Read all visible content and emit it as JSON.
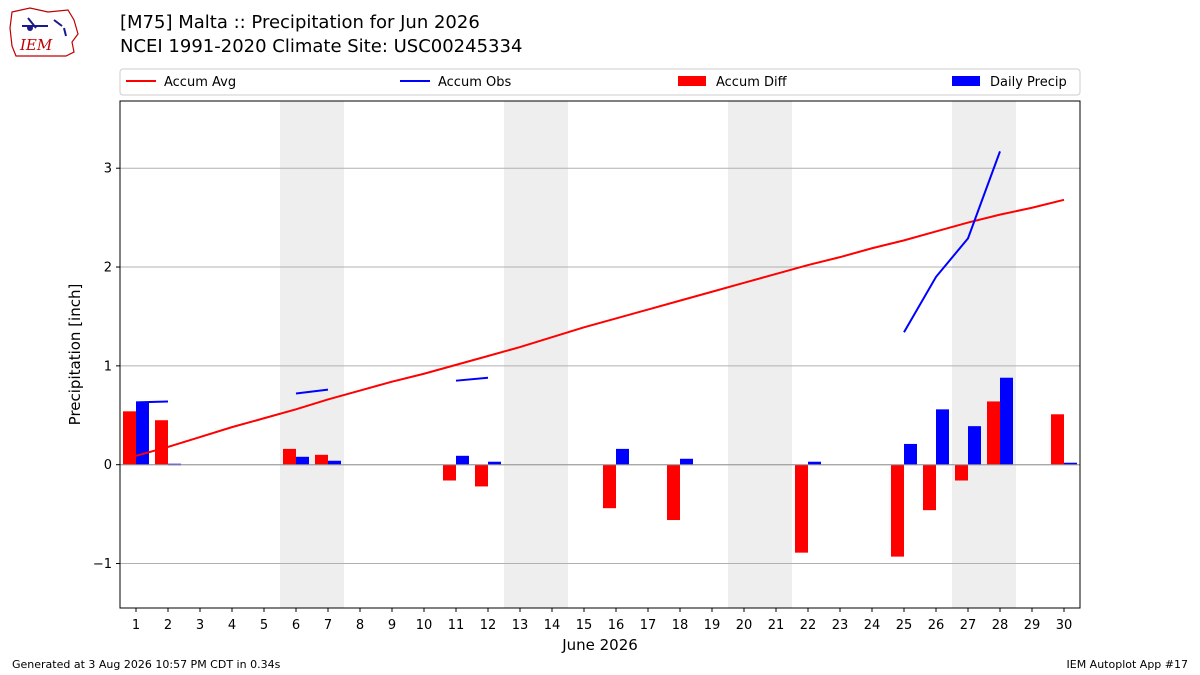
{
  "header": {
    "title_line1": "[M75] Malta :: Precipitation for Jun 2026",
    "title_line2": "NCEI 1991-2020 Climate Site: USC00245334"
  },
  "logo": {
    "text": "IEM",
    "icon": "iem-logo-icon"
  },
  "footer": {
    "generated": "Generated at 3 Aug 2026 10:57 PM CDT in 0.34s",
    "app": "IEM Autoplot App #17"
  },
  "colors": {
    "avg": "#ff0000",
    "obs": "#0000ff",
    "diff": "#ff0000",
    "daily": "#0000ff",
    "weekend": "#eeeeee",
    "grid": "#b0b0b0"
  },
  "chart_data": {
    "type": "bar",
    "xlabel": "June 2026",
    "ylabel": "Precipitation [inch]",
    "xlim": [
      0.5,
      30.5
    ],
    "ylim": [
      -1.45,
      3.68
    ],
    "yticks": [
      -1,
      0,
      1,
      2,
      3
    ],
    "yticklabels": [
      "−1",
      "0",
      "1",
      "2",
      "3"
    ],
    "categories": [
      1,
      2,
      3,
      4,
      5,
      6,
      7,
      8,
      9,
      10,
      11,
      12,
      13,
      14,
      15,
      16,
      17,
      18,
      19,
      20,
      21,
      22,
      23,
      24,
      25,
      26,
      27,
      28,
      29,
      30
    ],
    "grid": "horizontal",
    "legend_placement": "top (above plot, 4 columns)",
    "weekend_shading": [
      [
        5.5,
        7.5
      ],
      [
        12.5,
        14.5
      ],
      [
        19.5,
        21.5
      ],
      [
        26.5,
        28.5
      ]
    ],
    "series": [
      {
        "name": "Accum Avg",
        "kind": "line",
        "color": "#ff0000",
        "x": [
          1,
          2,
          3,
          4,
          5,
          6,
          7,
          8,
          9,
          10,
          11,
          12,
          13,
          14,
          15,
          16,
          17,
          18,
          19,
          20,
          21,
          22,
          23,
          24,
          25,
          26,
          27,
          28,
          29,
          30
        ],
        "values": [
          0.09,
          0.18,
          0.28,
          0.38,
          0.47,
          0.56,
          0.66,
          0.75,
          0.84,
          0.92,
          1.01,
          1.1,
          1.19,
          1.29,
          1.39,
          1.48,
          1.57,
          1.66,
          1.75,
          1.84,
          1.93,
          2.02,
          2.1,
          2.19,
          2.27,
          2.36,
          2.45,
          2.53,
          2.6,
          2.68
        ]
      },
      {
        "name": "Accum Obs",
        "kind": "line_segments",
        "color": "#0000ff",
        "segments": [
          {
            "x": [
              1,
              2
            ],
            "values": [
              0.63,
              0.64
            ]
          },
          {
            "x": [
              6,
              7
            ],
            "values": [
              0.72,
              0.76
            ]
          },
          {
            "x": [
              11,
              12
            ],
            "values": [
              0.85,
              0.88
            ]
          },
          {
            "x": [
              25,
              26,
              27,
              28
            ],
            "values": [
              1.34,
              1.9,
              2.29,
              3.17
            ]
          }
        ]
      },
      {
        "name": "Accum Diff",
        "kind": "bar",
        "offset": "left",
        "color": "#ff0000",
        "values": [
          0.54,
          0.45,
          0,
          0,
          0,
          0.16,
          0.1,
          0,
          0,
          0,
          -0.16,
          -0.22,
          0,
          0,
          0,
          -0.44,
          0,
          -0.56,
          0,
          0,
          0,
          -0.89,
          0,
          0,
          -0.93,
          -0.46,
          -0.16,
          0.64,
          0,
          0.51
        ]
      },
      {
        "name": "Daily Precip",
        "kind": "bar",
        "offset": "right",
        "color": "#0000ff",
        "values": [
          0.63,
          0.01,
          0,
          0,
          0,
          0.08,
          0.04,
          0,
          0,
          0,
          0.09,
          0.03,
          0,
          0,
          0,
          0.16,
          0,
          0.06,
          0,
          0,
          0,
          0.03,
          0,
          0,
          0.21,
          0.56,
          0.39,
          0.88,
          0,
          0.02
        ]
      }
    ]
  }
}
